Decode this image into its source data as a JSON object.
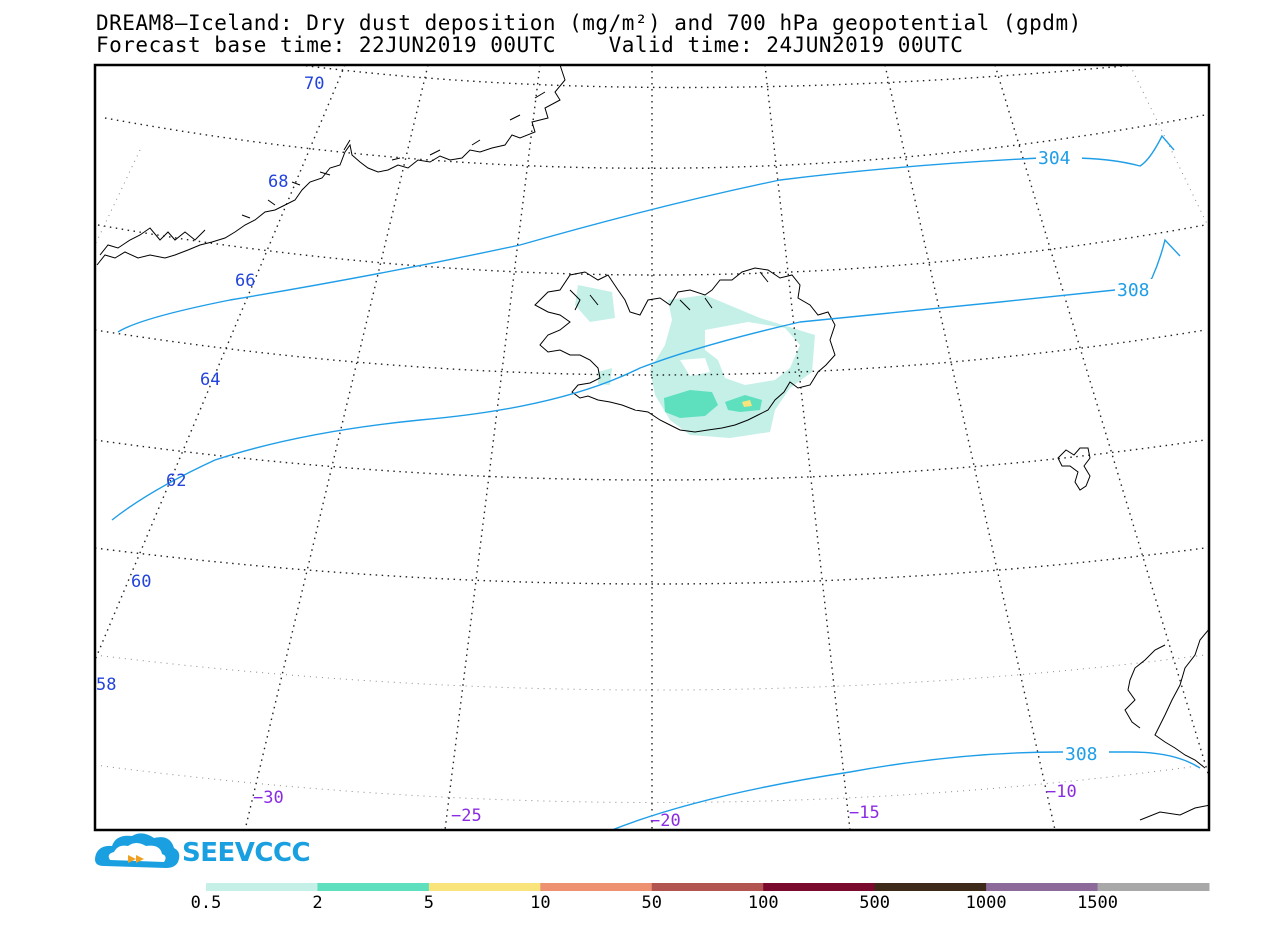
{
  "header": {
    "title_line1": "DREAM8—Iceland: Dry dust deposition (mg/m²) and 700 hPa geopotential (gpdm)",
    "title_line2": "Forecast base time: 22JUN2019 00UTC    Valid time: 24JUN2019 00UTC"
  },
  "logo": {
    "text": "SEEVCCC",
    "color": "#1aa0e0"
  },
  "map": {
    "lat_labels": [
      "70",
      "68",
      "66",
      "64",
      "62",
      "60",
      "58"
    ],
    "lon_labels": [
      "−30",
      "−25",
      "−20",
      "−15",
      "−10"
    ],
    "contour_labels": [
      "304",
      "308",
      "308"
    ],
    "colors": {
      "lat_label": "#2244dd",
      "lon_label": "#8a2be2",
      "contour": "#1f9ee8"
    }
  },
  "colorbar": {
    "labels": [
      "0.5",
      "2",
      "5",
      "10",
      "50",
      "100",
      "500",
      "1000",
      "1500"
    ],
    "colors": [
      "#c4f0e8",
      "#5ee0bf",
      "#f8e47a",
      "#ee9170",
      "#b25450",
      "#7a0a2e",
      "#3e2a18",
      "#8c6a9a",
      "#a8a8a8"
    ]
  }
}
